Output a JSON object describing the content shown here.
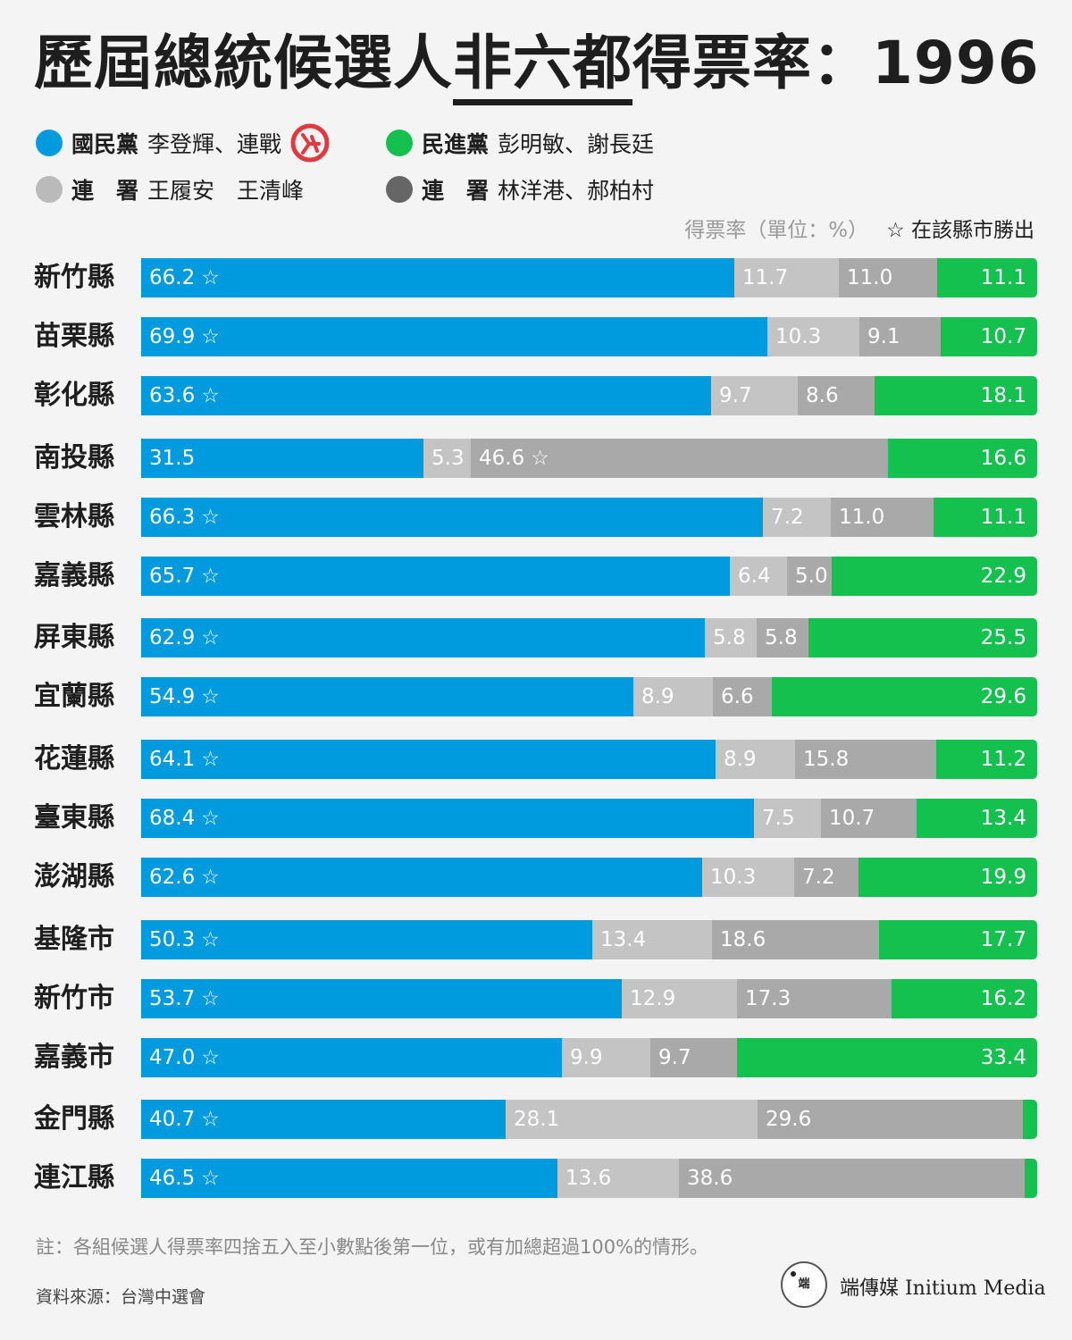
{
  "title": {
    "prefix": "歷屆總統候選人",
    "highlight": "非六都",
    "suffix": "得票率：1996"
  },
  "legend": [
    {
      "party": "國民黨",
      "names": "李登輝、連戰",
      "color": "#009adf",
      "badge": "ballot-stamp-icon"
    },
    {
      "party": "民進黨",
      "names": "彭明敏、謝長廷",
      "color": "#14c14f"
    },
    {
      "party": "連　署",
      "names": "王履安　王清峰",
      "color": "#bababa"
    },
    {
      "party": "連　署",
      "names": "林洋港、郝柏村",
      "color": "#666666"
    }
  ],
  "units_note": "得票率（單位：%）",
  "win_note": "☆ 在該縣市勝出",
  "colors": {
    "kmt": "#009adf",
    "wang": "#c4c4c4",
    "lin": "#a9a9a9",
    "dpp": "#14c14f",
    "text": "#1e1e1e"
  },
  "chart_data": {
    "type": "bar",
    "orientation": "horizontal",
    "stacked": true,
    "categories": [
      "新竹縣",
      "苗栗縣",
      "彰化縣",
      "南投縣",
      "雲林縣",
      "嘉義縣",
      "屏東縣",
      "宜蘭縣",
      "花蓮縣",
      "臺東縣",
      "澎湖縣",
      "基隆市",
      "新竹市",
      "嘉義市",
      "金門縣",
      "連江縣"
    ],
    "series": [
      {
        "name": "國民黨 李登輝、連戰",
        "color": "#009adf",
        "values": [
          66.2,
          69.9,
          63.6,
          31.5,
          66.3,
          65.7,
          62.9,
          54.9,
          64.1,
          68.4,
          62.6,
          50.3,
          53.7,
          47.0,
          40.7,
          46.5
        ],
        "winner": [
          true,
          true,
          true,
          false,
          true,
          true,
          true,
          true,
          true,
          true,
          true,
          true,
          true,
          true,
          true,
          true
        ]
      },
      {
        "name": "連署 王履安 王清峰",
        "color": "#c4c4c4",
        "values": [
          11.7,
          10.3,
          9.7,
          5.3,
          7.2,
          6.4,
          5.8,
          8.9,
          8.9,
          7.5,
          10.3,
          13.4,
          12.9,
          9.9,
          28.1,
          13.6
        ]
      },
      {
        "name": "連署 林洋港、郝柏村",
        "color": "#a9a9a9",
        "values": [
          11.0,
          9.1,
          8.6,
          46.6,
          11.0,
          5.0,
          5.8,
          6.6,
          15.8,
          10.7,
          7.2,
          18.6,
          17.3,
          9.7,
          29.6,
          38.6
        ],
        "winner": [
          false,
          false,
          false,
          true,
          false,
          false,
          false,
          false,
          false,
          false,
          false,
          false,
          false,
          false,
          false,
          false
        ]
      },
      {
        "name": "民進黨 彭明敏、謝長廷",
        "color": "#14c14f",
        "values": [
          11.1,
          10.7,
          18.1,
          16.6,
          11.1,
          22.9,
          25.5,
          29.6,
          11.2,
          13.4,
          19.9,
          17.7,
          16.2,
          33.4,
          1.6,
          1.3
        ],
        "labels": [
          "11.1",
          "10.7",
          "18.1",
          "16.6",
          "11.1",
          "22.9",
          "25.5",
          "29.6",
          "11.2",
          "13.4",
          "19.9",
          "17.7",
          "16.2",
          "33.4",
          "",
          ""
        ]
      }
    ],
    "xlim": [
      0,
      100
    ],
    "star": "☆"
  },
  "footnote": "註：各組候選人得票率四捨五入至小數點後第一位，或有加總超過100%的情形。",
  "source": "資料來源：台灣中選會",
  "brand": {
    "logo_text": "端",
    "name": "端傳媒 Initium Media"
  }
}
